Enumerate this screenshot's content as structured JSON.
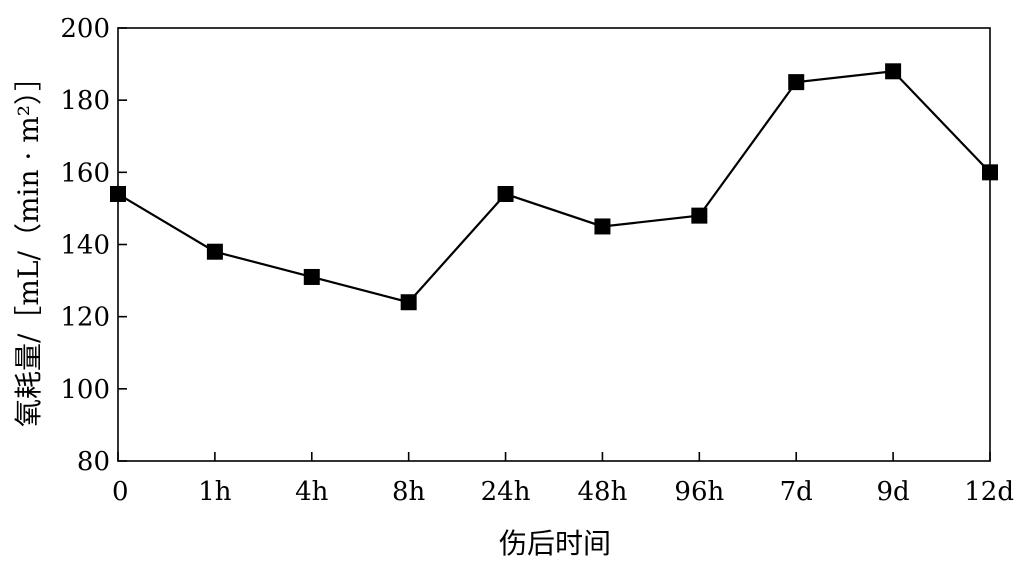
{
  "chart_data": {
    "type": "line",
    "categories": [
      "0",
      "1h",
      "4h",
      "8h",
      "24h",
      "48h",
      "96h",
      "7d",
      "9d",
      "12d"
    ],
    "series": [
      {
        "values": [
          154,
          138,
          131,
          124,
          154,
          145,
          148,
          185,
          188,
          160
        ]
      }
    ],
    "xlabel": "伤后时间",
    "ylabel": "氧耗量/［mL/（min · m²）］",
    "ylim": [
      80,
      200
    ],
    "yticks": [
      80,
      100,
      120,
      140,
      160,
      180,
      200
    ],
    "grid": false,
    "marker": "square",
    "colors": {
      "line": "#000000",
      "marker": "#000000",
      "axis": "#000000"
    }
  }
}
